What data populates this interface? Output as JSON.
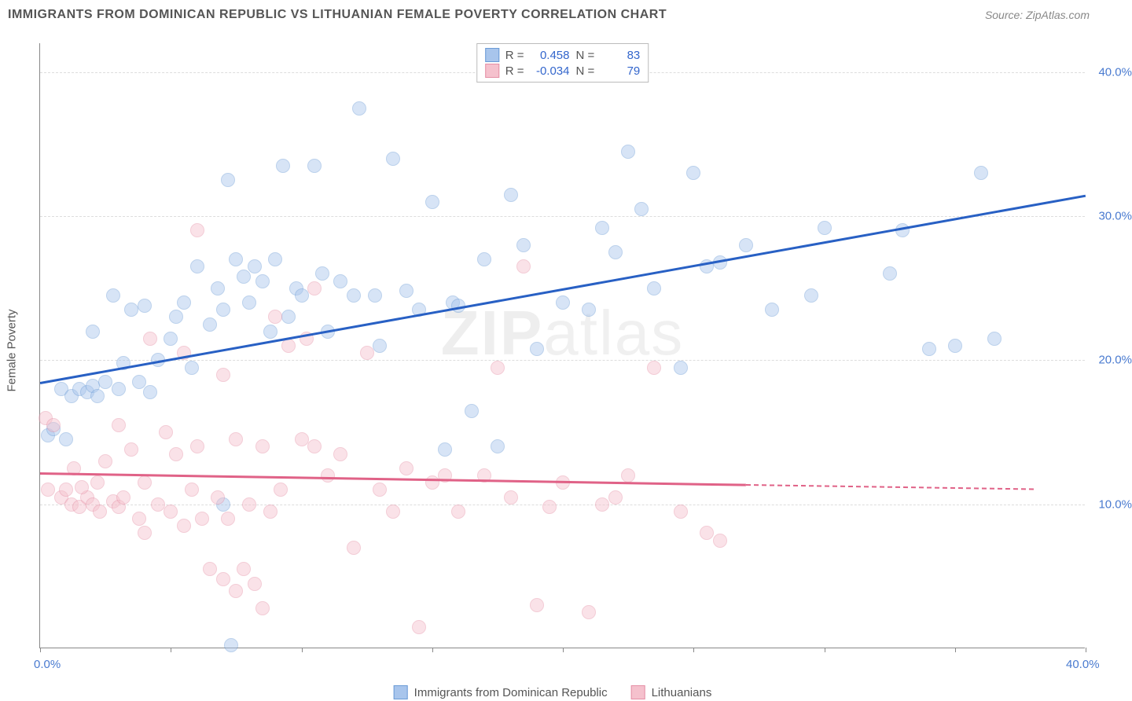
{
  "title": "IMMIGRANTS FROM DOMINICAN REPUBLIC VS LITHUANIAN FEMALE POVERTY CORRELATION CHART",
  "source": "Source: ZipAtlas.com",
  "watermark_bold": "ZIP",
  "watermark_thin": "atlas",
  "y_axis_label": "Female Poverty",
  "chart": {
    "type": "scatter",
    "background_color": "#ffffff",
    "grid_color": "#dddddd",
    "axis_color": "#888888",
    "label_color": "#4a7bd0",
    "title_color": "#555555",
    "xlim": [
      0,
      40
    ],
    "ylim": [
      0,
      42
    ],
    "y_ticks": [
      10,
      20,
      30,
      40
    ],
    "y_tick_labels": [
      "10.0%",
      "20.0%",
      "30.0%",
      "40.0%"
    ],
    "x_ticks": [
      0,
      5,
      10,
      15,
      20,
      25,
      30,
      35,
      40
    ],
    "x_tick_labels_shown": {
      "0": "0.0%",
      "40": "40.0%"
    },
    "marker_radius": 9,
    "marker_opacity": 0.45,
    "line_width": 2.5,
    "title_fontsize": 16,
    "label_fontsize": 15
  },
  "series": [
    {
      "name": "Immigrants from Dominican Republic",
      "fill_color": "#a8c5ec",
      "stroke_color": "#6b9bd6",
      "line_color": "#2860c4",
      "R": "0.458",
      "N": "83",
      "trend": {
        "x1": 0,
        "y1": 18.5,
        "x2": 40,
        "y2": 31.5
      },
      "points": [
        [
          0.3,
          14.8
        ],
        [
          0.5,
          15.2
        ],
        [
          0.8,
          18.0
        ],
        [
          1.0,
          14.5
        ],
        [
          1.2,
          17.5
        ],
        [
          1.5,
          18.0
        ],
        [
          1.8,
          17.8
        ],
        [
          2.0,
          18.2
        ],
        [
          2.2,
          17.5
        ],
        [
          2.5,
          18.5
        ],
        [
          2.0,
          22.0
        ],
        [
          2.8,
          24.5
        ],
        [
          3.0,
          18.0
        ],
        [
          3.2,
          19.8
        ],
        [
          3.5,
          23.5
        ],
        [
          3.8,
          18.5
        ],
        [
          4.0,
          23.8
        ],
        [
          4.2,
          17.8
        ],
        [
          4.5,
          20.0
        ],
        [
          5.0,
          21.5
        ],
        [
          5.2,
          23.0
        ],
        [
          5.5,
          24.0
        ],
        [
          5.8,
          19.5
        ],
        [
          6.0,
          26.5
        ],
        [
          6.5,
          22.5
        ],
        [
          6.8,
          25.0
        ],
        [
          7.0,
          23.5
        ],
        [
          7.0,
          10.0
        ],
        [
          7.2,
          32.5
        ],
        [
          7.5,
          27.0
        ],
        [
          7.8,
          25.8
        ],
        [
          8.0,
          24.0
        ],
        [
          8.2,
          26.5
        ],
        [
          8.5,
          25.5
        ],
        [
          8.8,
          22.0
        ],
        [
          9.0,
          27.0
        ],
        [
          9.3,
          33.5
        ],
        [
          9.5,
          23.0
        ],
        [
          9.8,
          25.0
        ],
        [
          10.0,
          24.5
        ],
        [
          10.5,
          33.5
        ],
        [
          10.8,
          26.0
        ],
        [
          11.0,
          22.0
        ],
        [
          11.5,
          25.5
        ],
        [
          12.0,
          24.5
        ],
        [
          12.2,
          37.5
        ],
        [
          12.8,
          24.5
        ],
        [
          13.0,
          21.0
        ],
        [
          13.5,
          34.0
        ],
        [
          14.0,
          24.8
        ],
        [
          14.5,
          23.5
        ],
        [
          15.0,
          31.0
        ],
        [
          15.5,
          13.8
        ],
        [
          15.8,
          24.0
        ],
        [
          16.0,
          23.8
        ],
        [
          16.5,
          16.5
        ],
        [
          17.0,
          27.0
        ],
        [
          17.5,
          14.0
        ],
        [
          18.0,
          31.5
        ],
        [
          18.5,
          28.0
        ],
        [
          19.0,
          20.8
        ],
        [
          20.0,
          24.0
        ],
        [
          21.0,
          23.5
        ],
        [
          21.5,
          29.2
        ],
        [
          22.0,
          27.5
        ],
        [
          22.5,
          34.5
        ],
        [
          23.0,
          30.5
        ],
        [
          23.5,
          25.0
        ],
        [
          24.5,
          19.5
        ],
        [
          25.0,
          33.0
        ],
        [
          25.5,
          26.5
        ],
        [
          26.0,
          26.8
        ],
        [
          27.0,
          28.0
        ],
        [
          28.0,
          23.5
        ],
        [
          29.5,
          24.5
        ],
        [
          30.0,
          29.2
        ],
        [
          32.5,
          26.0
        ],
        [
          33.0,
          29.0
        ],
        [
          34.0,
          20.8
        ],
        [
          35.0,
          21.0
        ],
        [
          36.0,
          33.0
        ],
        [
          36.5,
          21.5
        ],
        [
          7.3,
          0.2
        ]
      ]
    },
    {
      "name": "Lithuanians",
      "fill_color": "#f5c1cd",
      "stroke_color": "#e58fa5",
      "line_color": "#e06287",
      "R": "-0.034",
      "N": "79",
      "trend": {
        "x1": 0,
        "y1": 12.2,
        "x2": 27,
        "y2": 11.4
      },
      "trend_dash": {
        "x1": 27,
        "y1": 11.4,
        "x2": 38,
        "y2": 11.1
      },
      "points": [
        [
          0.2,
          16.0
        ],
        [
          0.5,
          15.5
        ],
        [
          0.3,
          11.0
        ],
        [
          0.8,
          10.5
        ],
        [
          1.0,
          11.0
        ],
        [
          1.2,
          10.0
        ],
        [
          1.3,
          12.5
        ],
        [
          1.5,
          9.8
        ],
        [
          1.8,
          10.5
        ],
        [
          1.6,
          11.2
        ],
        [
          2.0,
          10.0
        ],
        [
          2.2,
          11.5
        ],
        [
          2.3,
          9.5
        ],
        [
          2.5,
          13.0
        ],
        [
          2.8,
          10.2
        ],
        [
          3.0,
          15.5
        ],
        [
          3.0,
          9.8
        ],
        [
          3.2,
          10.5
        ],
        [
          3.5,
          13.8
        ],
        [
          3.8,
          9.0
        ],
        [
          4.0,
          11.5
        ],
        [
          4.0,
          8.0
        ],
        [
          4.2,
          21.5
        ],
        [
          4.5,
          10.0
        ],
        [
          4.8,
          15.0
        ],
        [
          5.0,
          9.5
        ],
        [
          5.2,
          13.5
        ],
        [
          5.5,
          8.5
        ],
        [
          5.5,
          20.5
        ],
        [
          5.8,
          11.0
        ],
        [
          6.0,
          14.0
        ],
        [
          6.0,
          29.0
        ],
        [
          6.2,
          9.0
        ],
        [
          6.5,
          5.5
        ],
        [
          6.8,
          10.5
        ],
        [
          7.0,
          4.8
        ],
        [
          7.0,
          19.0
        ],
        [
          7.2,
          9.0
        ],
        [
          7.5,
          14.5
        ],
        [
          7.5,
          4.0
        ],
        [
          7.8,
          5.5
        ],
        [
          8.0,
          10.0
        ],
        [
          8.2,
          4.5
        ],
        [
          8.5,
          14.0
        ],
        [
          8.5,
          2.8
        ],
        [
          8.8,
          9.5
        ],
        [
          9.0,
          23.0
        ],
        [
          9.2,
          11.0
        ],
        [
          9.5,
          21.0
        ],
        [
          10.0,
          14.5
        ],
        [
          10.2,
          21.5
        ],
        [
          10.5,
          14.0
        ],
        [
          10.5,
          25.0
        ],
        [
          11.0,
          12.0
        ],
        [
          11.5,
          13.5
        ],
        [
          12.0,
          7.0
        ],
        [
          12.5,
          20.5
        ],
        [
          13.0,
          11.0
        ],
        [
          13.5,
          9.5
        ],
        [
          14.0,
          12.5
        ],
        [
          14.5,
          1.5
        ],
        [
          15.0,
          11.5
        ],
        [
          15.5,
          12.0
        ],
        [
          16.0,
          9.5
        ],
        [
          17.0,
          12.0
        ],
        [
          17.5,
          19.5
        ],
        [
          18.0,
          10.5
        ],
        [
          18.5,
          26.5
        ],
        [
          19.0,
          3.0
        ],
        [
          19.5,
          9.8
        ],
        [
          20.0,
          11.5
        ],
        [
          21.0,
          2.5
        ],
        [
          21.5,
          10.0
        ],
        [
          22.0,
          10.5
        ],
        [
          22.5,
          12.0
        ],
        [
          23.5,
          19.5
        ],
        [
          24.5,
          9.5
        ],
        [
          25.5,
          8.0
        ],
        [
          26.0,
          7.5
        ]
      ]
    }
  ],
  "legend": {
    "r_label": "R =",
    "n_label": "N ="
  }
}
